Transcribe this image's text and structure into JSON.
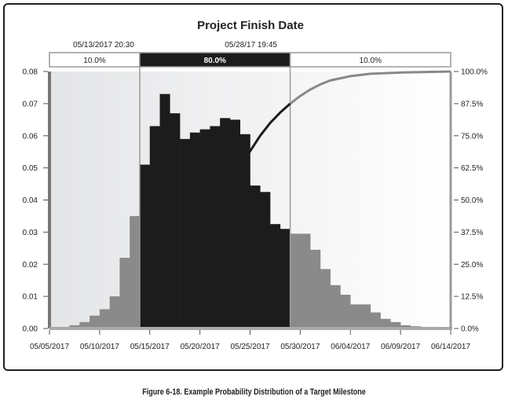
{
  "caption": "Figure 6-18. Example Probability Distribution of a Target Milestone",
  "colors": {
    "highlight_bar": "#1c1c1c",
    "tail_bar": "#8a8a8a",
    "cumulative_line_inside": "#1c1c1c",
    "cumulative_line_outside": "#888888",
    "shade": "#e6e6e6",
    "frame": "#222222"
  },
  "chart_data": {
    "type": "bar",
    "title": "Project Finish Date",
    "x_tick_labels": [
      "05/05/2017",
      "05/10/2017",
      "05/15/2017",
      "05/20/2017",
      "05/25/2017",
      "05/30/2017",
      "06/04/2017",
      "06/09/2017",
      "06/14/2017"
    ],
    "x_start": "05/05/2017",
    "x_end": "06/14/2017",
    "ylim": [
      0,
      0.08
    ],
    "y_ticks": [
      "0.00",
      "0.01",
      "0.02",
      "0.03",
      "0.04",
      "0.05",
      "0.06",
      "0.07",
      "0.08"
    ],
    "y2_ticks": [
      "0.0%",
      "12.5%",
      "25.0%",
      "37.5%",
      "50.0%",
      "62.5%",
      "75.0%",
      "87.5%",
      "100.0%"
    ],
    "bin_width_days": 1,
    "bins": [
      {
        "start": "05/05/2017",
        "value": 0.0005
      },
      {
        "start": "05/06/2017",
        "value": 0.0005
      },
      {
        "start": "05/07/2017",
        "value": 0.001
      },
      {
        "start": "05/08/2017",
        "value": 0.002
      },
      {
        "start": "05/09/2017",
        "value": 0.004
      },
      {
        "start": "05/10/2017",
        "value": 0.006
      },
      {
        "start": "05/11/2017",
        "value": 0.01
      },
      {
        "start": "05/12/2017",
        "value": 0.022
      },
      {
        "start": "05/13/2017",
        "value": 0.035
      },
      {
        "start": "05/14/2017",
        "value": 0.051
      },
      {
        "start": "05/15/2017",
        "value": 0.063
      },
      {
        "start": "05/16/2017",
        "value": 0.073
      },
      {
        "start": "05/17/2017",
        "value": 0.067
      },
      {
        "start": "05/18/2017",
        "value": 0.059
      },
      {
        "start": "05/19/2017",
        "value": 0.061
      },
      {
        "start": "05/20/2017",
        "value": 0.062
      },
      {
        "start": "05/21/2017",
        "value": 0.063
      },
      {
        "start": "05/22/2017",
        "value": 0.0655
      },
      {
        "start": "05/23/2017",
        "value": 0.065
      },
      {
        "start": "05/24/2017",
        "value": 0.0605
      },
      {
        "start": "05/25/2017",
        "value": 0.0445
      },
      {
        "start": "05/26/2017",
        "value": 0.0425
      },
      {
        "start": "05/27/2017",
        "value": 0.0325
      },
      {
        "start": "05/28/2017",
        "value": 0.031
      },
      {
        "start": "05/29/2017",
        "value": 0.0295
      },
      {
        "start": "05/30/2017",
        "value": 0.0295
      },
      {
        "start": "05/31/2017",
        "value": 0.0245
      },
      {
        "start": "06/01/2017",
        "value": 0.0185
      },
      {
        "start": "06/02/2017",
        "value": 0.0135
      },
      {
        "start": "06/03/2017",
        "value": 0.0105
      },
      {
        "start": "06/04/2017",
        "value": 0.0075
      },
      {
        "start": "06/05/2017",
        "value": 0.0075
      },
      {
        "start": "06/06/2017",
        "value": 0.005
      },
      {
        "start": "06/07/2017",
        "value": 0.003
      },
      {
        "start": "06/08/2017",
        "value": 0.002
      },
      {
        "start": "06/09/2017",
        "value": 0.001
      },
      {
        "start": "06/10/2017",
        "value": 0.0007
      },
      {
        "start": "06/11/2017",
        "value": 0.0005
      },
      {
        "start": "06/12/2017",
        "value": 0.0005
      },
      {
        "start": "06/13/2017",
        "value": 0.0003
      }
    ],
    "cumulative_curve": [
      {
        "x": "05/24/2017",
        "y": 0.63
      },
      {
        "x": "05/25/2017",
        "y": 0.69
      },
      {
        "x": "05/26/2017",
        "y": 0.75
      },
      {
        "x": "05/27/2017",
        "y": 0.8
      },
      {
        "x": "05/28/2017",
        "y": 0.84
      },
      {
        "x": "05/29/2017",
        "y": 0.875
      },
      {
        "x": "05/30/2017",
        "y": 0.905
      },
      {
        "x": "05/31/2017",
        "y": 0.93
      },
      {
        "x": "06/01/2017",
        "y": 0.95
      },
      {
        "x": "06/02/2017",
        "y": 0.965
      },
      {
        "x": "06/04/2017",
        "y": 0.982
      },
      {
        "x": "06/06/2017",
        "y": 0.991
      },
      {
        "x": "06/09/2017",
        "y": 0.996
      },
      {
        "x": "06/14/2017",
        "y": 1.0
      }
    ],
    "markers": [
      {
        "label": "05/13/2017  20:30",
        "x": "05/14/2017"
      },
      {
        "label": "05/28/17  19:45",
        "x": "05/29/2017"
      }
    ],
    "segments": [
      {
        "label": "10.0%",
        "from": "05/05/2017",
        "to": "05/14/2017",
        "dark": false
      },
      {
        "label": "80.0%",
        "from": "05/14/2017",
        "to": "05/29/2017",
        "dark": true
      },
      {
        "label": "10.0%",
        "from": "05/29/2017",
        "to": "06/14/2017",
        "dark": false
      }
    ]
  }
}
